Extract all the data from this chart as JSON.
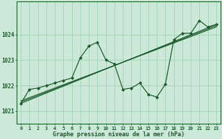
{
  "background_color": "#cce8d8",
  "grid_color": "#99ccb0",
  "line_color": "#1a5c2a",
  "marker_color": "#1a5c2a",
  "xlabel": "Graphe pression niveau de la mer (hPa)",
  "xlabel_fontsize": 6.0,
  "ylabel_fontsize": 5.5,
  "tick_fontsize": 4.8,
  "xlim": [
    -0.5,
    23.5
  ],
  "ylim": [
    1020.5,
    1025.3
  ],
  "yticks": [
    1021,
    1022,
    1023,
    1024
  ],
  "xticks": [
    0,
    1,
    2,
    3,
    4,
    5,
    6,
    7,
    8,
    9,
    10,
    11,
    12,
    13,
    14,
    15,
    16,
    17,
    18,
    19,
    20,
    21,
    22,
    23
  ],
  "series": [
    {
      "x": [
        0,
        1,
        2,
        3,
        4,
        5,
        6,
        7,
        8,
        9,
        10,
        11,
        12,
        13,
        14,
        15,
        16,
        17,
        18,
        19,
        20,
        21,
        22,
        23
      ],
      "y": [
        1021.3,
        1021.85,
        1021.9,
        1022.0,
        1022.1,
        1022.2,
        1022.3,
        1023.1,
        1023.55,
        1023.7,
        1023.0,
        1022.85,
        1021.85,
        1021.9,
        1022.1,
        1021.65,
        1021.55,
        1022.05,
        1023.8,
        1024.05,
        1024.05,
        1024.55,
        1024.3,
        1024.4
      ],
      "linewidth": 0.9,
      "markersize": 2.2,
      "marker": "D"
    },
    {
      "x": [
        0,
        23
      ],
      "y": [
        1021.3,
        1024.4
      ],
      "linewidth": 0.8,
      "markersize": 0,
      "marker": ""
    },
    {
      "x": [
        0,
        23
      ],
      "y": [
        1021.35,
        1024.35
      ],
      "linewidth": 0.8,
      "markersize": 0,
      "marker": ""
    },
    {
      "x": [
        0,
        23
      ],
      "y": [
        1021.4,
        1024.3
      ],
      "linewidth": 0.8,
      "markersize": 0,
      "marker": ""
    }
  ],
  "figure_width": 3.2,
  "figure_height": 2.0,
  "dpi": 100
}
